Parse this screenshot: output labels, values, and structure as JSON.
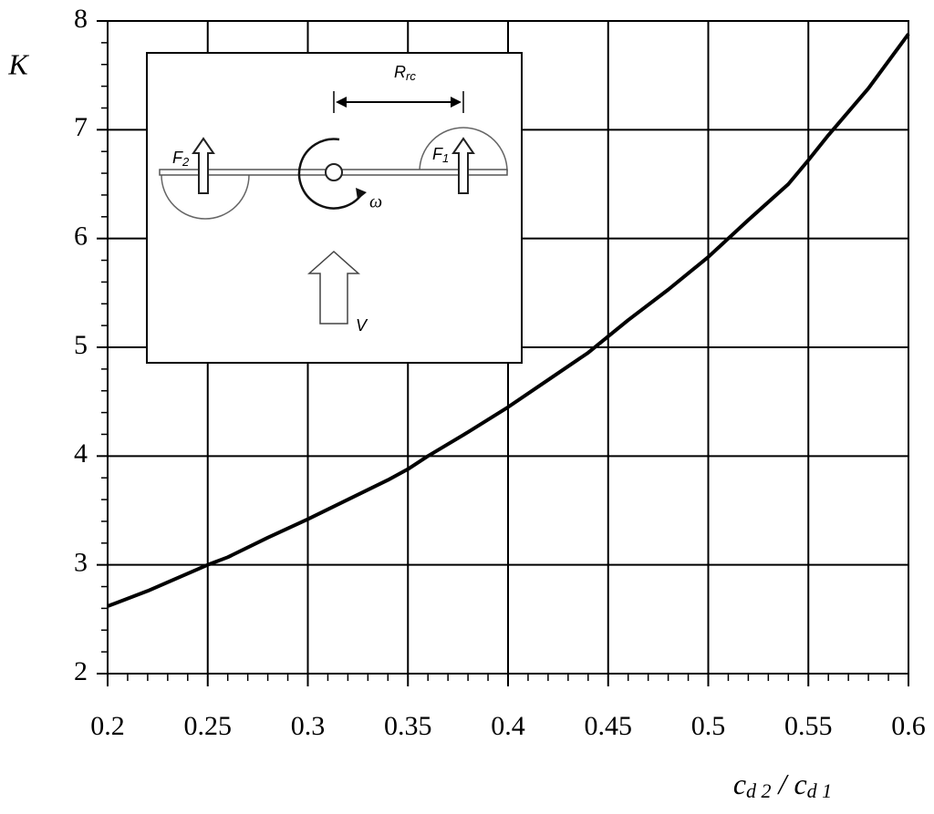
{
  "chart_data": {
    "type": "line",
    "y_label": "K",
    "x_label": [
      "c",
      "d 2",
      " / ",
      "c",
      "d 1"
    ],
    "x": [
      0.2,
      0.22,
      0.25,
      0.26,
      0.28,
      0.3,
      0.32,
      0.34,
      0.35,
      0.36,
      0.38,
      0.4,
      0.42,
      0.44,
      0.45,
      0.46,
      0.48,
      0.5,
      0.52,
      0.54,
      0.55,
      0.56,
      0.58,
      0.6
    ],
    "series": [
      {
        "color": "#000000",
        "values": [
          2.62,
          2.76,
          3.0,
          3.07,
          3.25,
          3.42,
          3.6,
          3.78,
          3.88,
          4.0,
          4.22,
          4.45,
          4.7,
          4.95,
          5.1,
          5.25,
          5.53,
          5.83,
          6.17,
          6.5,
          6.72,
          6.95,
          7.38,
          7.88
        ]
      }
    ],
    "xlim": [
      0.2,
      0.6
    ],
    "ylim": [
      2,
      8
    ],
    "xticks": [
      0.2,
      0.25,
      0.3,
      0.35,
      0.4,
      0.45,
      0.5,
      0.55,
      0.6
    ],
    "yticks": [
      2,
      3,
      4,
      5,
      6,
      7,
      8
    ],
    "xminorticks": [
      0.21,
      0.22,
      0.23,
      0.24,
      0.26,
      0.27,
      0.28,
      0.29,
      0.31,
      0.32,
      0.33,
      0.34,
      0.36,
      0.37,
      0.38,
      0.39,
      0.41,
      0.42,
      0.43,
      0.44,
      0.46,
      0.47,
      0.48,
      0.49,
      0.51,
      0.52,
      0.53,
      0.54,
      0.56,
      0.57,
      0.58,
      0.59
    ],
    "yminorticks": [
      2.2,
      2.4,
      2.6,
      2.8,
      3.2,
      3.4,
      3.6,
      3.8,
      4.2,
      4.4,
      4.6,
      4.8,
      5.2,
      5.4,
      5.6,
      5.8,
      6.2,
      6.4,
      6.6,
      6.8,
      7.2,
      7.4,
      7.6,
      7.8
    ],
    "grid": true,
    "inset": {
      "R": "R",
      "R_sub": "rc",
      "F2": "F",
      "F2_sub": "2",
      "F1": "F",
      "F1_sub": "1",
      "omega": "ω",
      "V": "V"
    }
  }
}
